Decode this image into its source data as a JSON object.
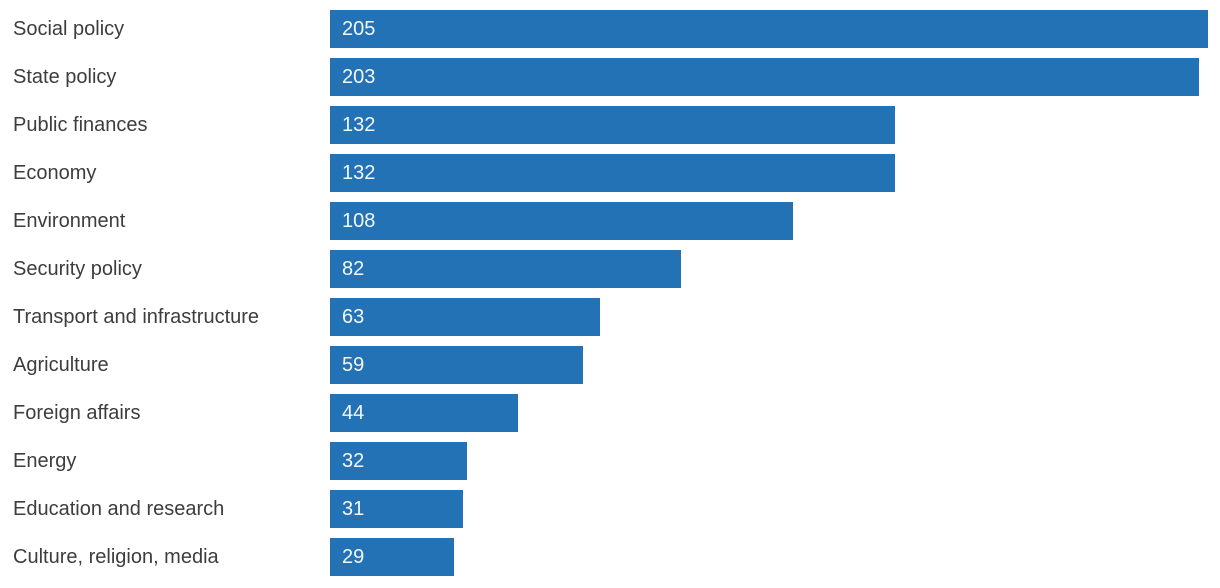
{
  "chart_data": {
    "type": "bar",
    "orientation": "horizontal",
    "title": "",
    "xlabel": "",
    "ylabel": "",
    "categories": [
      "Social policy",
      "State policy",
      "Public finances",
      "Economy",
      "Environment",
      "Security policy",
      "Transport and infrastructure",
      "Agriculture",
      "Foreign affairs",
      "Energy",
      "Education and research",
      "Culture, religion, media"
    ],
    "values": [
      205,
      203,
      132,
      132,
      108,
      82,
      63,
      59,
      44,
      32,
      31,
      29
    ],
    "value_labels_shown": true,
    "value_label_position": "inside-start",
    "xlim": [
      0,
      205
    ],
    "grid": false,
    "legend": "none",
    "colors": {
      "bar": "#2272b5",
      "category_label_text": "#3d3d3d",
      "value_label_text": "#f5f6f7",
      "background": "#ffffff"
    }
  }
}
